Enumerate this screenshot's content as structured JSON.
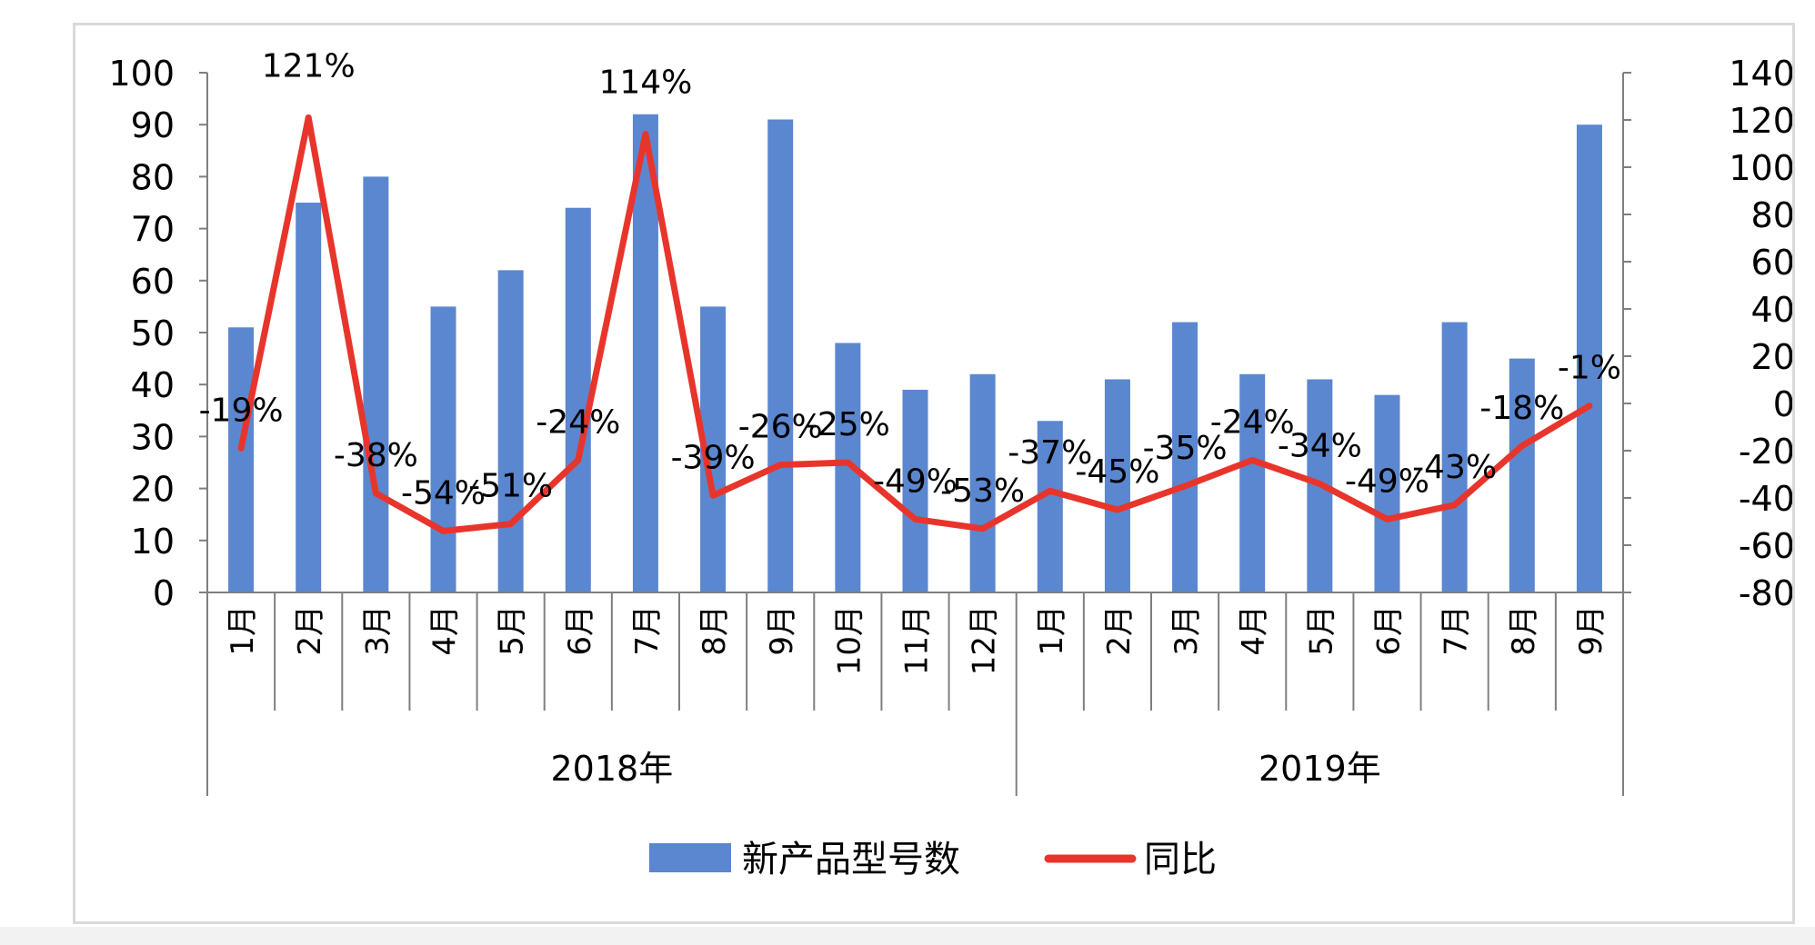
{
  "chart_data": {
    "type": "bar+line",
    "groups": [
      {
        "label": "2018年",
        "months": [
          "1月",
          "2月",
          "3月",
          "4月",
          "5月",
          "6月",
          "7月",
          "8月",
          "9月",
          "10月",
          "11月",
          "12月"
        ]
      },
      {
        "label": "2019年",
        "months": [
          "1月",
          "2月",
          "3月",
          "4月",
          "5月",
          "6月",
          "7月",
          "8月",
          "9月"
        ]
      }
    ],
    "series": [
      {
        "name": "新产品型号数",
        "type": "bar",
        "axis": "left",
        "color": "#5b87d0",
        "values": [
          51,
          75,
          80,
          55,
          62,
          74,
          92,
          55,
          91,
          48,
          39,
          42,
          33,
          41,
          52,
          42,
          41,
          38,
          52,
          45,
          90
        ]
      },
      {
        "name": "同比",
        "type": "line",
        "axis": "right",
        "color": "#e8352c",
        "values": [
          -19,
          121,
          -38,
          -54,
          -51,
          -24,
          114,
          -39,
          -26,
          -25,
          -49,
          -53,
          -37,
          -45,
          -35,
          -24,
          -34,
          -49,
          -43,
          -18,
          -1
        ],
        "labels": [
          "-19%",
          "121%",
          "-38%",
          "-54%",
          "-51%",
          "-24%",
          "114%",
          "-39%",
          "-26%",
          "-25%",
          "-49%",
          "-53%",
          "-37%",
          "-45%",
          "-35%",
          "-24%",
          "-34%",
          "-49%",
          "-43%",
          "-18%",
          "-1%"
        ]
      }
    ],
    "left_axis": {
      "min": 0,
      "max": 100,
      "ticks": [
        "0",
        "10",
        "20",
        "30",
        "40",
        "50",
        "60",
        "70",
        "80",
        "90",
        "100"
      ]
    },
    "right_axis": {
      "min": -80,
      "max": 140,
      "ticks": [
        "-80%",
        "-60%",
        "-40%",
        "-20%",
        "0%",
        "20%",
        "40%",
        "60%",
        "80%",
        "100%",
        "120%",
        "140%"
      ]
    },
    "grid": false,
    "legend": {
      "position": "bottom",
      "items": [
        "新产品型号数",
        "同比"
      ]
    }
  }
}
